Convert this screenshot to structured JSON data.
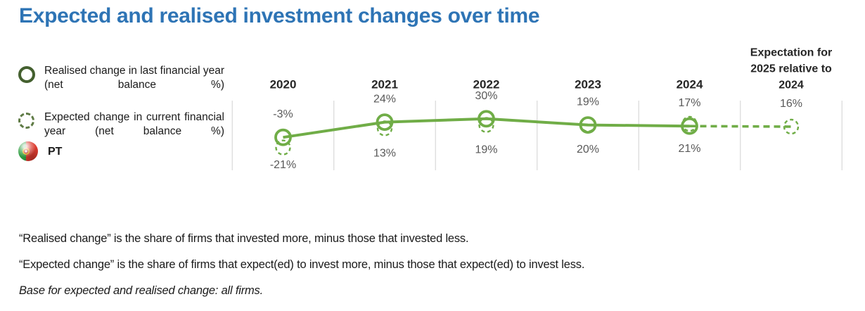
{
  "title": "Expected and realised investment changes over time",
  "legend": {
    "items": [
      {
        "icon": "solid-circle-icon",
        "label": "Realised change in last financial year (net balance %)"
      },
      {
        "icon": "dashed-circle-icon",
        "label": "Expected change in current financial year (net balance %)"
      },
      {
        "icon": "pt-flag-icon",
        "label": "PT"
      }
    ]
  },
  "colors": {
    "title_blue": "#2e74b5",
    "chart_green": "#70ad47",
    "legend_solid_green": "#44602f",
    "legend_dashed_green": "#5e7a44",
    "category_label": "#262626",
    "value_label": "#595959",
    "gridline": "#d9d9d9"
  },
  "chart_data": {
    "type": "line",
    "country": "PT",
    "unit": "net balance %",
    "grid": "vertical-only",
    "categories": [
      "2020",
      "2021",
      "2022",
      "2023",
      "2024",
      "Expectation for 2025 relative to 2024"
    ],
    "category_display_lines": [
      [
        "2020"
      ],
      [
        "2021"
      ],
      [
        "2022"
      ],
      [
        "2023"
      ],
      [
        "2024"
      ],
      [
        "Expectation for",
        "2025 relative to",
        "2024"
      ]
    ],
    "series": [
      {
        "name": "Realised change in last financial year (net balance %)",
        "marker": "solid-circle",
        "line": "solid",
        "values": [
          -3,
          24,
          30,
          19,
          17,
          null
        ]
      },
      {
        "name": "Expected change in current financial year (net balance %)",
        "marker": "dashed-circle",
        "line": "none",
        "values": [
          -21,
          13,
          19,
          20,
          21,
          16
        ]
      }
    ],
    "forecast_segment": {
      "from_index": 4,
      "to_index": 5,
      "style": "dashed"
    },
    "point_labels_top": [
      "-3%",
      "24%",
      "30%",
      "19%",
      "17%",
      "16%"
    ],
    "point_labels_bottom": [
      "-21%",
      "13%",
      "19%",
      "20%",
      "21%",
      null
    ]
  },
  "footnotes": [
    "“Realised change” is the share of firms that invested more, minus those that invested less.",
    "“Expected change” is the share of firms that expect(ed) to invest more, minus those that expect(ed) to invest less.",
    "Base for expected and realised change: all firms."
  ]
}
